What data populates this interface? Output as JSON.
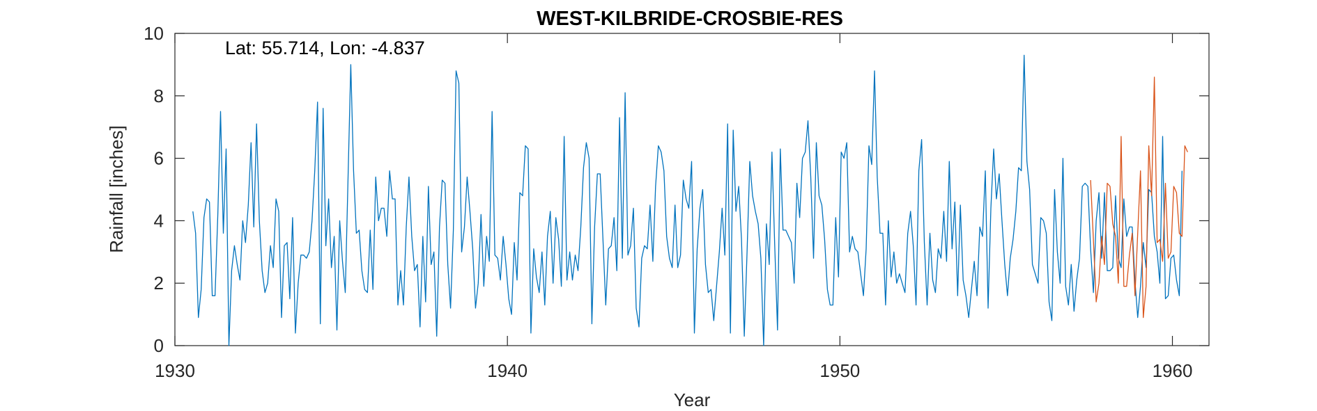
{
  "chart_data": {
    "type": "line",
    "title": "WEST-KILBRIDE-CROSBIE-RES",
    "xlabel": "Year",
    "ylabel": "Rainfall [inches]",
    "annotation": "Lat: 55.714, Lon: -4.837",
    "xlim": [
      1930,
      1961.1
    ],
    "ylim": [
      0,
      10
    ],
    "xticks": [
      1930,
      1940,
      1950,
      1960
    ],
    "xtick_labels": [
      "1930",
      "1940",
      "1950",
      "1960"
    ],
    "yticks": [
      0,
      2,
      4,
      6,
      8,
      10
    ],
    "ytick_labels": [
      "0",
      "2",
      "4",
      "6",
      "8",
      "10"
    ],
    "grid": false,
    "series": [
      {
        "color": "#0072BD",
        "x_start": 1930.54,
        "x_step": 0.0833333,
        "values": [
          4.3,
          3.6,
          0.9,
          1.8,
          4.1,
          4.7,
          4.6,
          1.6,
          1.6,
          4.2,
          7.5,
          3.6,
          6.3,
          0.0,
          2.4,
          3.2,
          2.6,
          2.1,
          4.0,
          3.3,
          4.5,
          6.5,
          3.8,
          7.1,
          4.0,
          2.4,
          1.7,
          2.0,
          3.2,
          2.5,
          4.7,
          4.3,
          0.9,
          3.2,
          3.3,
          1.5,
          4.1,
          0.4,
          2.0,
          2.9,
          2.9,
          2.8,
          3.0,
          4.0,
          5.6,
          7.8,
          0.7,
          7.6,
          3.2,
          4.7,
          2.5,
          3.5,
          0.5,
          4.0,
          2.7,
          1.7,
          5.3,
          9.0,
          5.6,
          3.6,
          3.7,
          2.4,
          1.8,
          1.7,
          3.7,
          1.8,
          5.4,
          4.0,
          4.4,
          4.4,
          3.5,
          5.6,
          4.7,
          4.7,
          1.3,
          2.4,
          1.3,
          3.8,
          5.4,
          3.5,
          2.4,
          2.6,
          0.6,
          3.5,
          1.4,
          5.1,
          2.6,
          3.0,
          0.3,
          3.8,
          5.3,
          5.2,
          2.6,
          1.2,
          3.7,
          8.8,
          8.4,
          3.0,
          3.8,
          5.4,
          4.3,
          3.1,
          1.2,
          2.0,
          4.2,
          1.9,
          3.5,
          2.7,
          7.5,
          2.9,
          2.8,
          2.1,
          3.5,
          2.6,
          1.5,
          1.0,
          3.3,
          2.1,
          4.9,
          4.8,
          6.4,
          6.3,
          0.4,
          3.1,
          2.2,
          1.7,
          3.0,
          1.3,
          3.5,
          4.3,
          2.0,
          4.1,
          3.4,
          1.9,
          6.7,
          2.1,
          3.0,
          2.1,
          2.9,
          2.4,
          3.8,
          5.7,
          6.5,
          6.0,
          0.7,
          3.8,
          5.5,
          5.5,
          3.4,
          1.3,
          3.1,
          3.2,
          4.1,
          2.4,
          7.3,
          2.8,
          8.1,
          2.9,
          3.2,
          4.4,
          1.2,
          0.6,
          2.8,
          3.2,
          3.1,
          4.5,
          2.7,
          5.1,
          6.4,
          6.2,
          5.6,
          3.5,
          2.8,
          2.5,
          4.5,
          2.5,
          2.9,
          5.3,
          4.7,
          4.4,
          5.9,
          0.4,
          3.1,
          4.4,
          5.0,
          2.6,
          1.7,
          1.8,
          0.8,
          1.9,
          3.0,
          4.4,
          2.9,
          7.1,
          0.4,
          6.9,
          4.3,
          5.1,
          3.4,
          0.3,
          3.0,
          5.9,
          4.8,
          4.3,
          3.9,
          2.8,
          0.0,
          3.9,
          2.6,
          6.2,
          3.2,
          0.5,
          6.3,
          3.7,
          3.7,
          3.5,
          3.3,
          2.0,
          5.2,
          4.1,
          6.0,
          6.2,
          7.2,
          5.4,
          2.8,
          6.5,
          4.8,
          4.5,
          3.4,
          1.8,
          1.3,
          1.3,
          4.1,
          2.2,
          6.2,
          6.0,
          6.5,
          3.0,
          3.5,
          3.1,
          3.0,
          2.3,
          1.6,
          3.1,
          6.4,
          5.8,
          8.8,
          5.4,
          3.6,
          3.6,
          1.3,
          4.0,
          2.2,
          3.0,
          2.0,
          2.3,
          2.0,
          1.7,
          3.6,
          4.3,
          3.2,
          1.3,
          5.6,
          6.6,
          3.3,
          1.3,
          3.6,
          2.1,
          1.7,
          3.1,
          2.8,
          4.3,
          2.7,
          5.9,
          3.1,
          4.6,
          1.6,
          4.5,
          2.1,
          1.6,
          0.9,
          1.8,
          2.7,
          1.6,
          3.8,
          3.5,
          5.6,
          1.2,
          4.4,
          6.3,
          4.7,
          5.5,
          4.0,
          2.6,
          1.6,
          2.8,
          3.4,
          4.3,
          5.7,
          5.6,
          9.3,
          5.9,
          5.0,
          2.6,
          2.3,
          2.0,
          4.1,
          4.0,
          3.6,
          1.4,
          0.8,
          5.0,
          3.0,
          2.0,
          6.0,
          1.9,
          1.3,
          2.6,
          1.1,
          2.1,
          2.8,
          5.1,
          5.2,
          5.1,
          3.1,
          1.7,
          4.0,
          4.9,
          2.8,
          4.9,
          2.4,
          2.4,
          2.5,
          4.8,
          2.8,
          2.5,
          4.7,
          3.5,
          3.8,
          3.8,
          2.1,
          0.9,
          1.9,
          3.3,
          2.5,
          5.0,
          4.9,
          3.5,
          3.0,
          2.0,
          6.7,
          1.5,
          1.6,
          2.8,
          2.9,
          2.1,
          1.6,
          5.6
        ]
      },
      {
        "color": "#D95319",
        "x_start": 1957.54,
        "x_step": 0.0833333,
        "values": [
          5.3,
          3.4,
          1.4,
          2.0,
          3.5,
          2.6,
          5.2,
          5.1,
          3.9,
          3.5,
          2.0,
          6.7,
          1.9,
          1.9,
          2.9,
          3.6,
          1.6,
          3.6,
          5.6,
          0.9,
          1.9,
          6.4,
          4.8,
          8.6,
          3.3,
          3.4,
          2.7,
          5.2,
          2.8,
          3.0,
          5.1,
          4.9,
          3.6,
          3.5,
          6.4,
          6.2
        ]
      }
    ]
  }
}
